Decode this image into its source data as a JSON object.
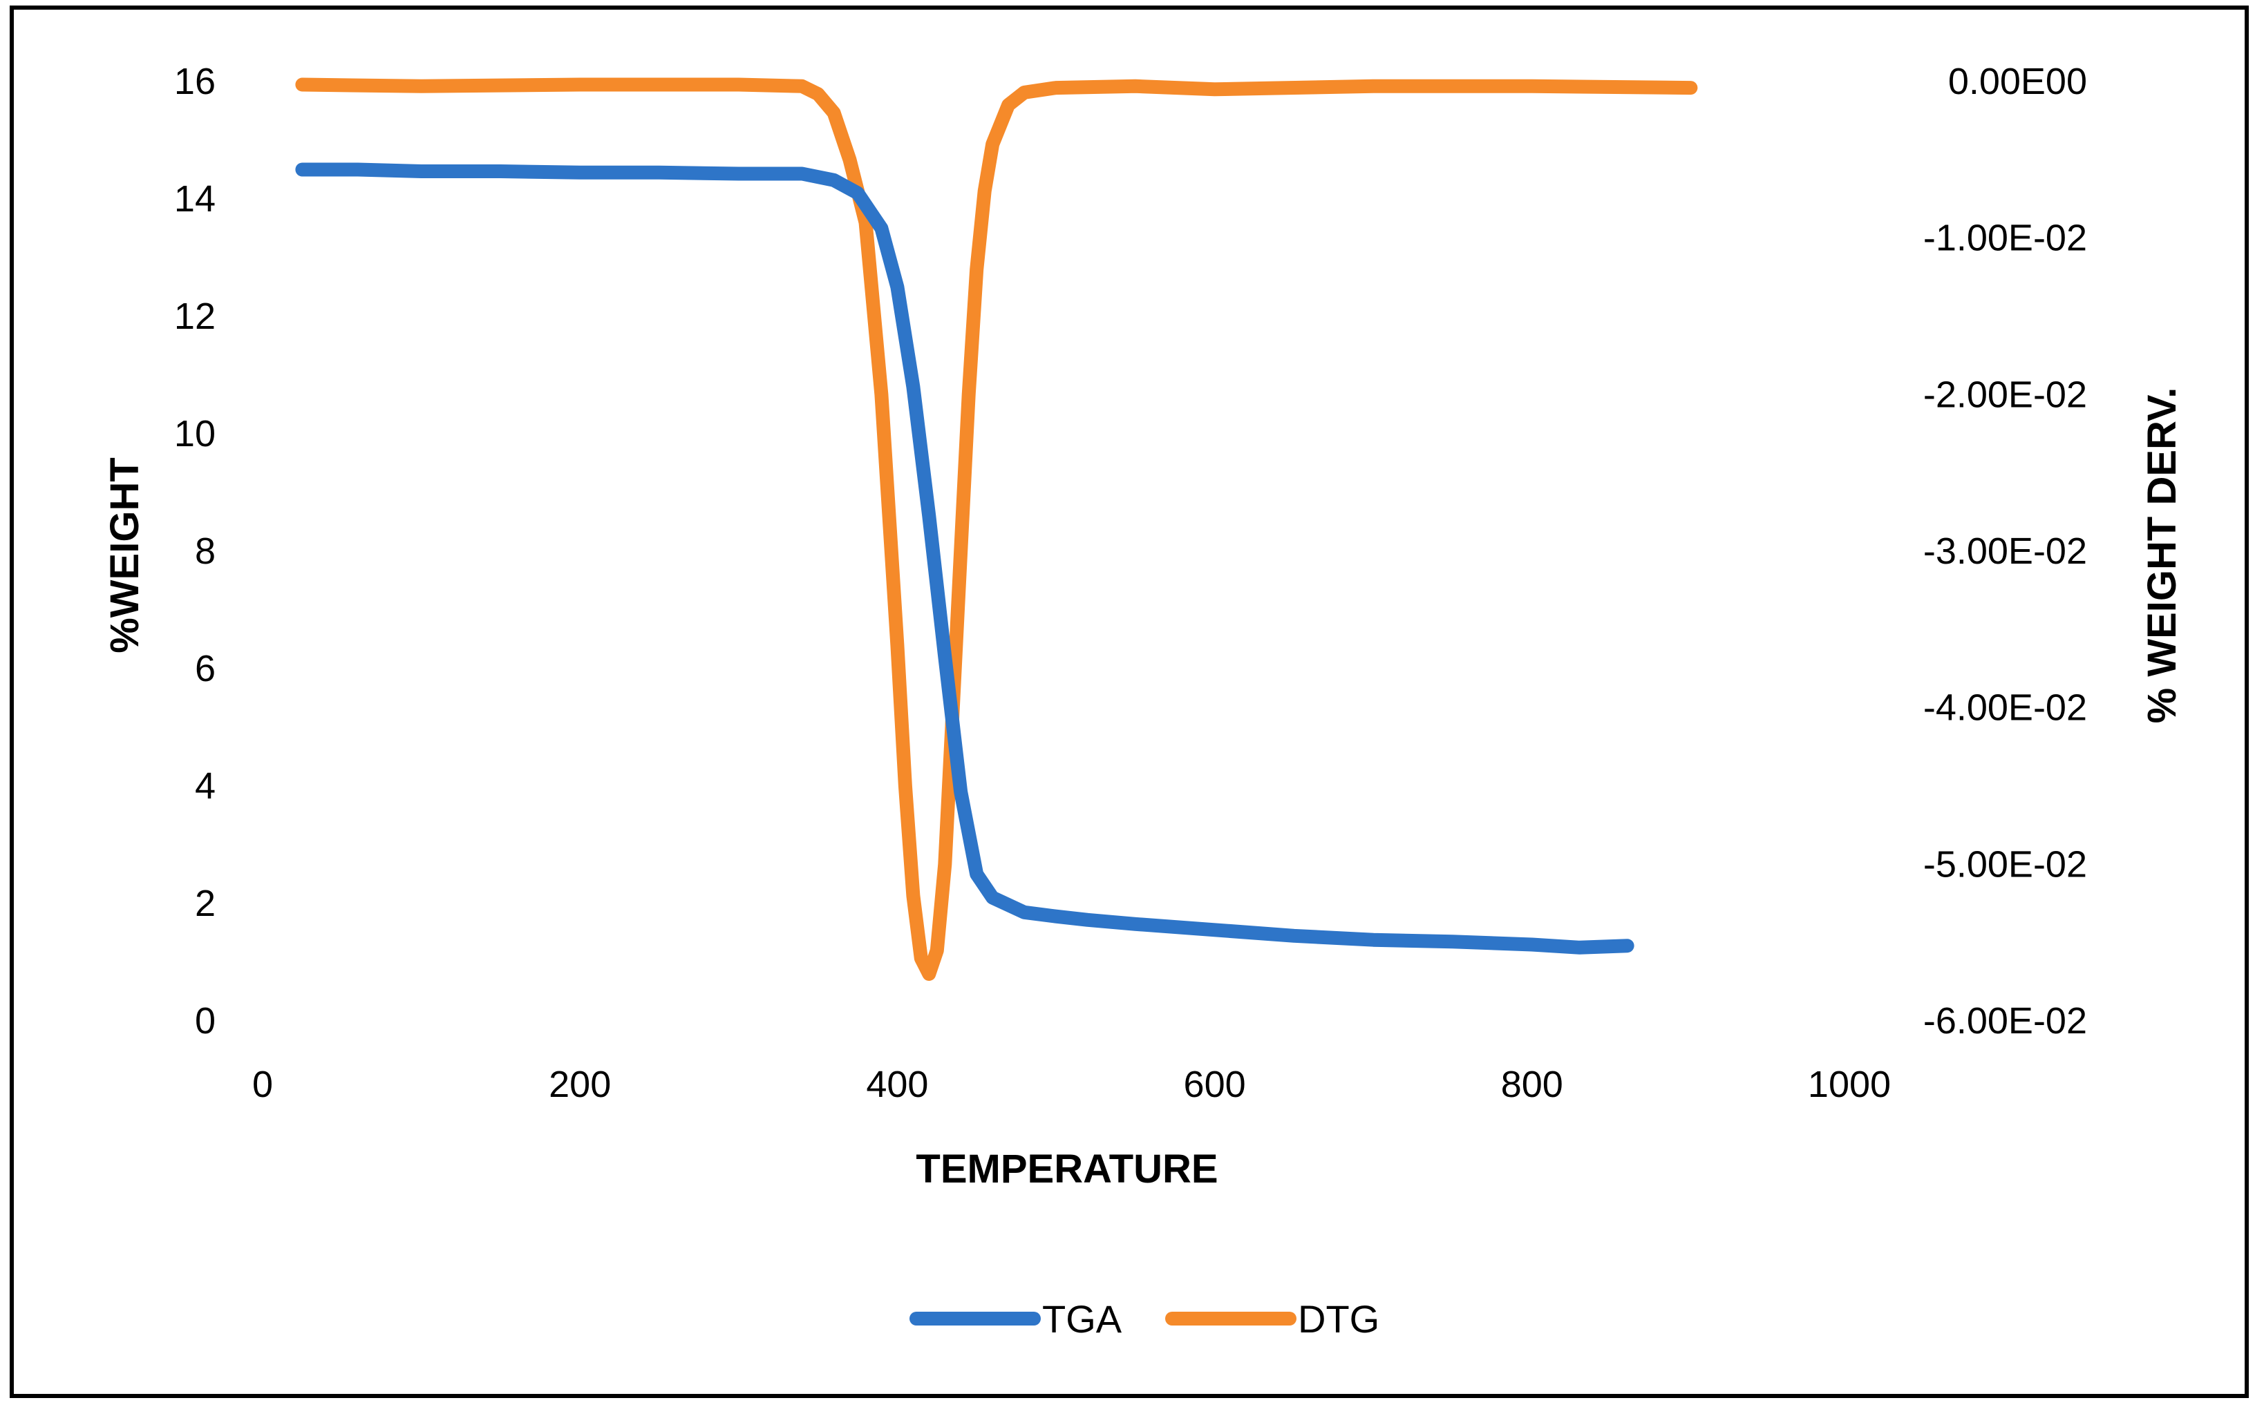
{
  "chart_data": {
    "type": "line",
    "title": "",
    "xlabel": "TEMPERATURE",
    "ylabel": "%WEIGHT",
    "y2label": "% WEIGHT DERV.",
    "xlim": [
      0,
      1000
    ],
    "ylim": [
      0,
      16
    ],
    "y2lim": [
      -0.06,
      0
    ],
    "grid": false,
    "legend_position": "bottom",
    "x_ticks": [
      "0",
      "200",
      "400",
      "600",
      "800",
      "1000"
    ],
    "y_ticks": [
      "0",
      "2",
      "4",
      "6",
      "8",
      "10",
      "12",
      "14",
      "16"
    ],
    "y2_ticks": [
      "-6.00E-02",
      "-5.00E-02",
      "-4.00E-02",
      "-3.00E-02",
      "-2.00E-02",
      "-1.00E-02",
      "0.00E00"
    ],
    "series": [
      {
        "name": "TGA",
        "axis": "left",
        "color": "#2E75C8",
        "x": [
          25,
          60,
          100,
          150,
          200,
          250,
          300,
          340,
          360,
          375,
          390,
          400,
          410,
          420,
          430,
          440,
          450,
          460,
          480,
          500,
          520,
          550,
          600,
          650,
          700,
          750,
          800,
          830,
          860
        ],
        "y": [
          14.5,
          14.5,
          14.47,
          14.47,
          14.45,
          14.45,
          14.43,
          14.43,
          14.32,
          14.1,
          13.5,
          12.5,
          10.8,
          8.6,
          6.2,
          3.9,
          2.5,
          2.1,
          1.85,
          1.78,
          1.72,
          1.65,
          1.55,
          1.45,
          1.38,
          1.35,
          1.3,
          1.25,
          1.28
        ]
      },
      {
        "name": "DTG",
        "axis": "right",
        "color": "#F58A2A",
        "x": [
          25,
          100,
          200,
          300,
          340,
          350,
          360,
          370,
          380,
          390,
          400,
          405,
          410,
          415,
          420,
          425,
          430,
          435,
          440,
          445,
          450,
          455,
          460,
          470,
          480,
          500,
          550,
          600,
          700,
          800,
          900
        ],
        "y": [
          -0.0002,
          -0.0003,
          -0.0002,
          -0.0002,
          -0.0003,
          -0.0008,
          -0.002,
          -0.005,
          -0.009,
          -0.02,
          -0.036,
          -0.045,
          -0.052,
          -0.056,
          -0.057,
          -0.0555,
          -0.05,
          -0.04,
          -0.03,
          -0.02,
          -0.012,
          -0.007,
          -0.004,
          -0.0015,
          -0.0007,
          -0.0004,
          -0.0003,
          -0.0005,
          -0.0003,
          -0.0003,
          -0.0004
        ]
      }
    ]
  }
}
